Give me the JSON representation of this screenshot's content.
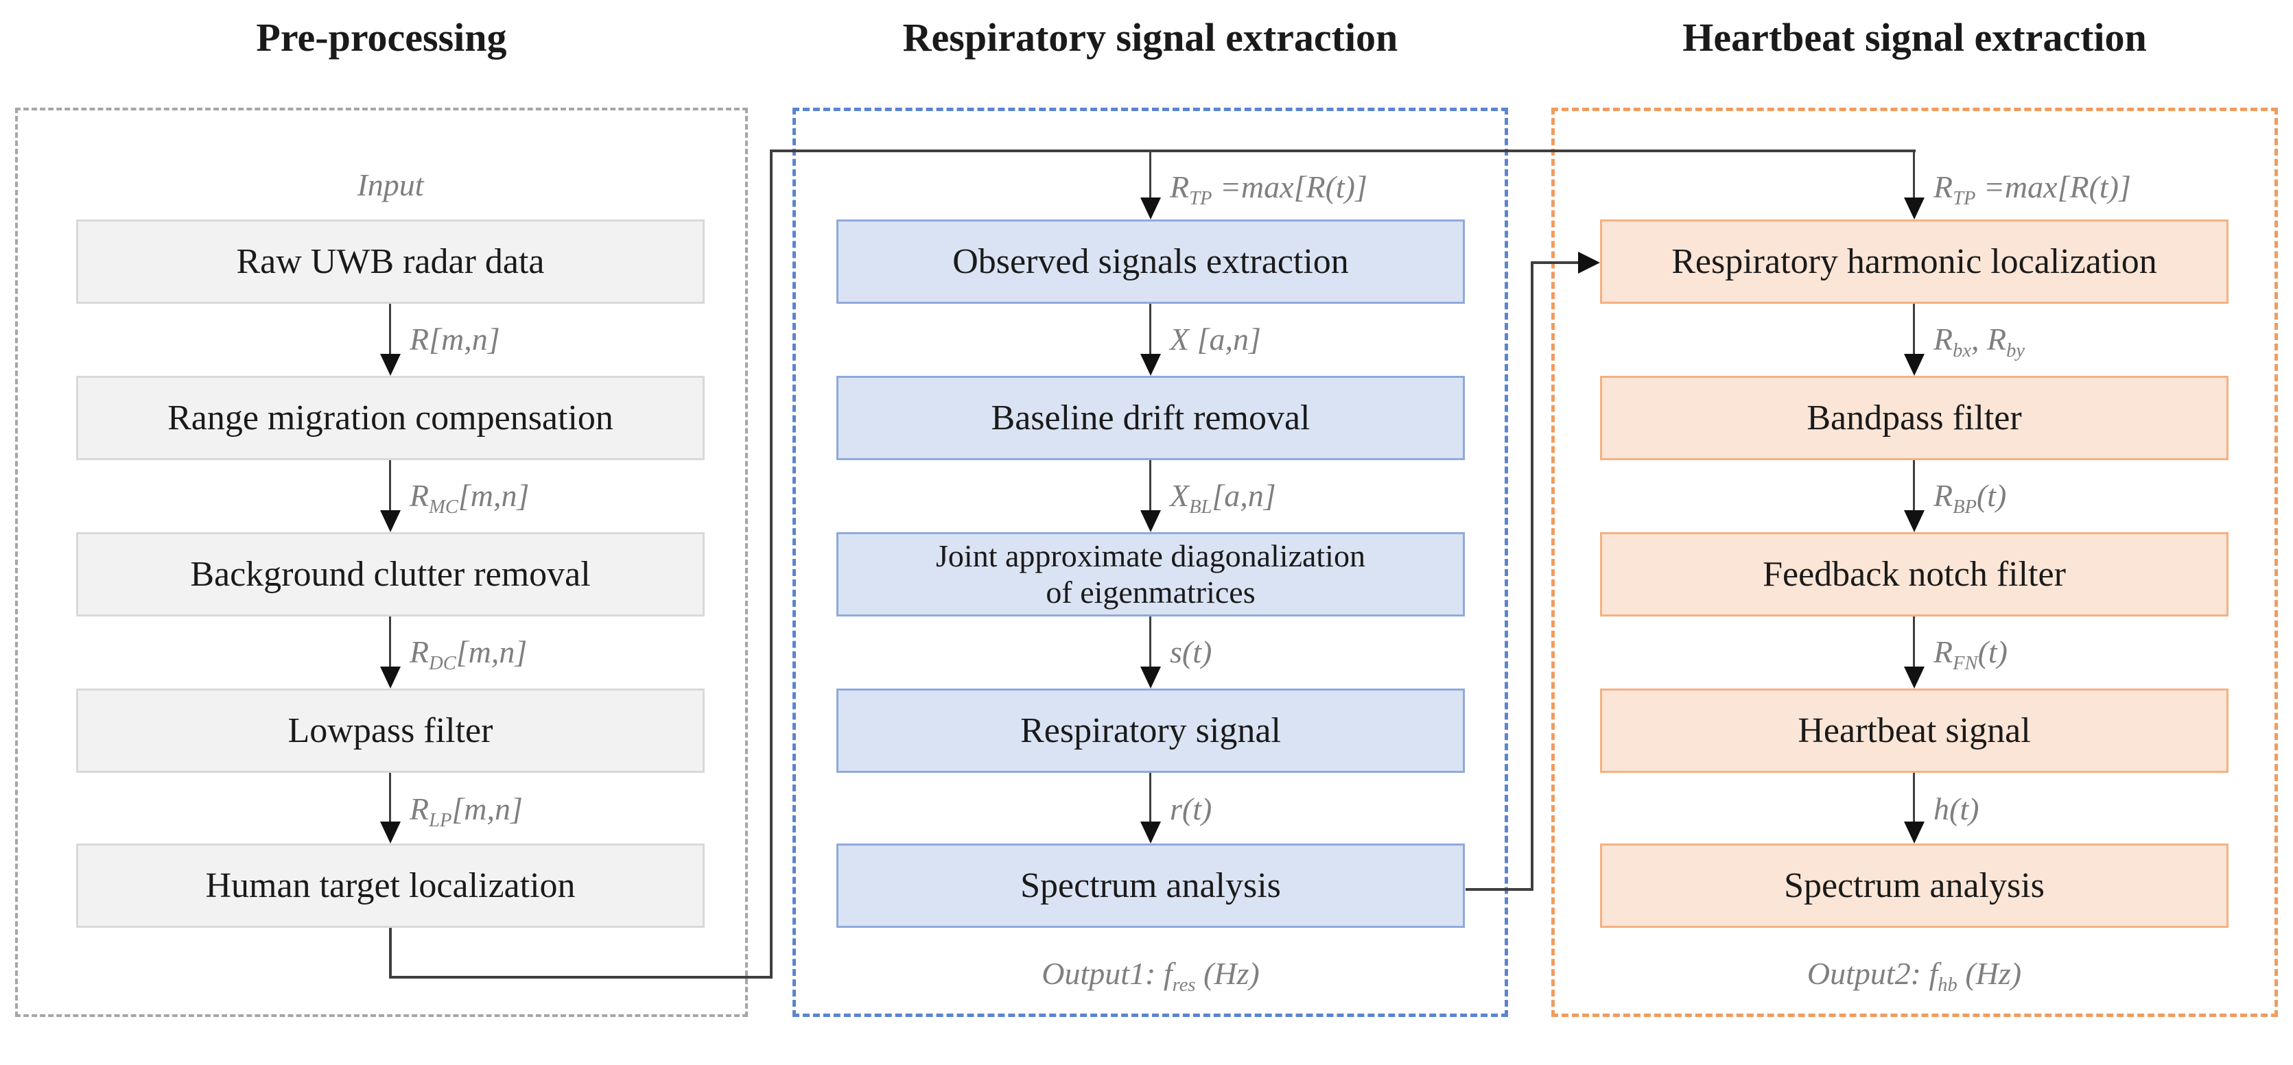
{
  "columns": [
    {
      "title": "Pre-processing",
      "input_label": "Input",
      "boxes": [
        {
          "label": "Raw UWB radar data"
        },
        {
          "label": "Range migration compensation"
        },
        {
          "label": "Background clutter removal"
        },
        {
          "label": "Lowpass filter"
        },
        {
          "label": "Human target localization"
        }
      ],
      "arrow_labels": [
        {
          "text": "R[m,n]",
          "segments": [
            {
              "t": "R[m,n]"
            }
          ]
        },
        {
          "text": "R_MC[m,n]",
          "segments": [
            {
              "t": "R"
            },
            {
              "s": "MC"
            },
            {
              "t": "[m,n]"
            }
          ]
        },
        {
          "text": "R_DC[m,n]",
          "segments": [
            {
              "t": "R"
            },
            {
              "s": "DC"
            },
            {
              "t": "[m,n]"
            }
          ]
        },
        {
          "text": "R_LP[m,n]",
          "segments": [
            {
              "t": "R"
            },
            {
              "s": "LP"
            },
            {
              "t": "[m,n]"
            }
          ]
        }
      ],
      "colors": {
        "box_fill": "#f2f2f2",
        "box_border": "#d9d9d9",
        "dashed_border": "#a6a6a6"
      }
    },
    {
      "title": "Respiratory signal extraction",
      "boxes": [
        {
          "label": "Observed signals extraction"
        },
        {
          "label": "Baseline drift removal"
        },
        {
          "label": "Joint approximate diagonalization",
          "label2": "of eigenmatrices"
        },
        {
          "label": "Respiratory signal"
        },
        {
          "label": "Spectrum analysis"
        }
      ],
      "arrow_labels": [
        {
          "text": "R_TP=max[R(t)]",
          "segments": [
            {
              "t": "R"
            },
            {
              "s": "TP"
            },
            {
              "t": " =max[R(t)]"
            }
          ]
        },
        {
          "text": "X [a,n]",
          "segments": [
            {
              "t": "X [a,n]"
            }
          ]
        },
        {
          "text": "X_BL[a,n]",
          "segments": [
            {
              "t": "X"
            },
            {
              "s": "BL"
            },
            {
              "t": "[a,n]"
            }
          ]
        },
        {
          "text": "s(t)",
          "segments": [
            {
              "t": "s(t)"
            }
          ]
        },
        {
          "text": "r(t)",
          "segments": [
            {
              "t": "r(t)"
            }
          ]
        }
      ],
      "output_label": {
        "text": "Output1: f_res (Hz)",
        "segments": [
          {
            "t": "Output1:  f"
          },
          {
            "s": "res"
          },
          {
            "t": " (Hz)"
          }
        ]
      },
      "colors": {
        "box_fill": "#dae3f3",
        "box_border": "#8faadc",
        "dashed_border": "#5b84d1"
      }
    },
    {
      "title": "Heartbeat signal extraction",
      "boxes": [
        {
          "label": "Respiratory harmonic localization"
        },
        {
          "label": "Bandpass filter"
        },
        {
          "label": "Feedback notch filter"
        },
        {
          "label": "Heartbeat signal"
        },
        {
          "label": "Spectrum analysis"
        }
      ],
      "arrow_labels": [
        {
          "text": "R_TP=max[R(t)]",
          "segments": [
            {
              "t": "R"
            },
            {
              "s": "TP"
            },
            {
              "t": " =max[R(t)]"
            }
          ]
        },
        {
          "text": "R_bx, R_by",
          "segments": [
            {
              "t": "R"
            },
            {
              "s": "bx"
            },
            {
              "t": ", R"
            },
            {
              "s": "by"
            }
          ]
        },
        {
          "text": "R_BP(t)",
          "segments": [
            {
              "t": "R"
            },
            {
              "s": "BP"
            },
            {
              "t": "(t)"
            }
          ]
        },
        {
          "text": "R_FN(t)",
          "segments": [
            {
              "t": "R"
            },
            {
              "s": "FN"
            },
            {
              "t": "(t)"
            }
          ]
        },
        {
          "text": "h(t)",
          "segments": [
            {
              "t": "h(t)"
            }
          ]
        }
      ],
      "output_label": {
        "text": "Output2: f_hb (Hz)",
        "segments": [
          {
            "t": "Output2:  f"
          },
          {
            "s": "hb"
          },
          {
            "t": " (Hz)"
          }
        ]
      },
      "colors": {
        "box_fill": "#fbe5d6",
        "box_border": "#f4b183",
        "dashed_border": "#f09c5f"
      }
    }
  ],
  "line_color": "#3f3f3f"
}
